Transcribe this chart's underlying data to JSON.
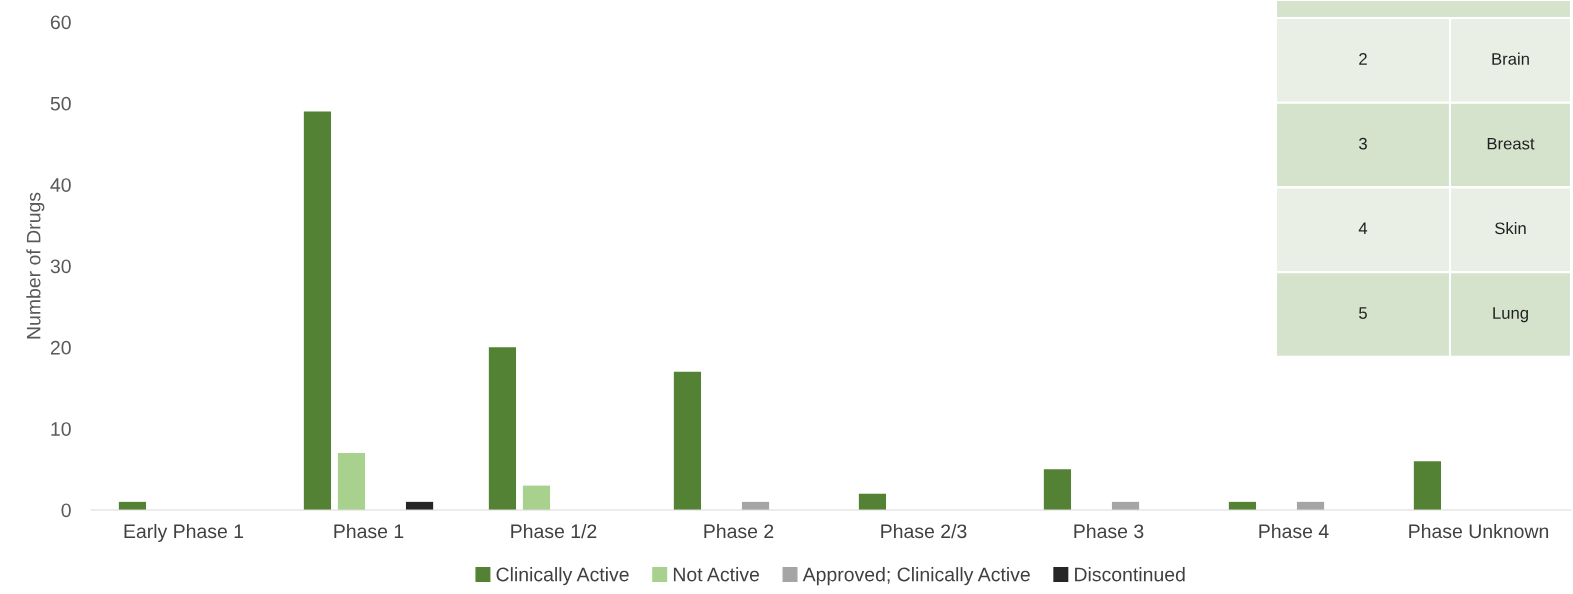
{
  "chart_data": {
    "type": "bar",
    "ylabel": "Number of Drugs",
    "categories": [
      "Early Phase 1",
      "Phase 1",
      "Phase 1/2",
      "Phase 2",
      "Phase 2/3",
      "Phase 3",
      "Phase 4",
      "Phase Unknown"
    ],
    "series": [
      {
        "name": "Clinically Active",
        "color": "#548235",
        "values": [
          1,
          49,
          20,
          17,
          2,
          5,
          1,
          6
        ]
      },
      {
        "name": "Not Active",
        "color": "#a9d18e",
        "values": [
          0,
          7,
          3,
          0,
          0,
          0,
          0,
          0
        ]
      },
      {
        "name": "Approved; Clinically Active",
        "color": "#a5a5a5",
        "values": [
          0,
          0,
          0,
          1,
          0,
          1,
          1,
          0
        ]
      },
      {
        "name": "Discontinued",
        "color": "#262626",
        "values": [
          0,
          1,
          0,
          0,
          0,
          0,
          0,
          0
        ]
      }
    ],
    "ylim": [
      0,
      60
    ],
    "yticks": [
      0,
      10,
      20,
      30,
      40,
      50,
      60
    ],
    "grid": false,
    "legend": "bottom",
    "annotations": [
      "2",
      "Brain",
      "3",
      "Breast",
      "4",
      "Skin",
      "5",
      "Lung"
    ]
  }
}
